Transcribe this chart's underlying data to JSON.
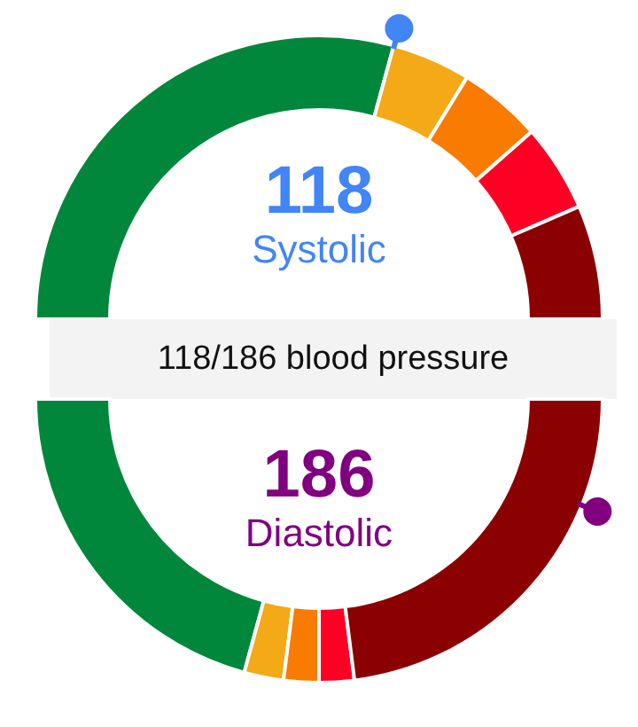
{
  "chart_data": [
    {
      "type": "donut",
      "title": "118/186 blood pressure",
      "annotations": [
        "118",
        "Systolic"
      ],
      "categories": [
        null,
        null,
        null,
        null,
        null
      ],
      "values": [
        58.5,
        9,
        9.5,
        10,
        13
      ],
      "colors": [
        "#00873c",
        "#f4a917",
        "#f97b02",
        "#ff0025",
        "#8b0000"
      ]
    },
    {
      "type": "donut",
      "annotations": [
        "186",
        "Diastolic"
      ],
      "categories": [
        null,
        null,
        null,
        null,
        null
      ],
      "values": [
        41.5,
        4.5,
        4,
        4,
        46
      ],
      "colors": [
        "#00873c",
        "#f4a917",
        "#f97b02",
        "#ff0025",
        "#8b0000"
      ]
    }
  ]
}
